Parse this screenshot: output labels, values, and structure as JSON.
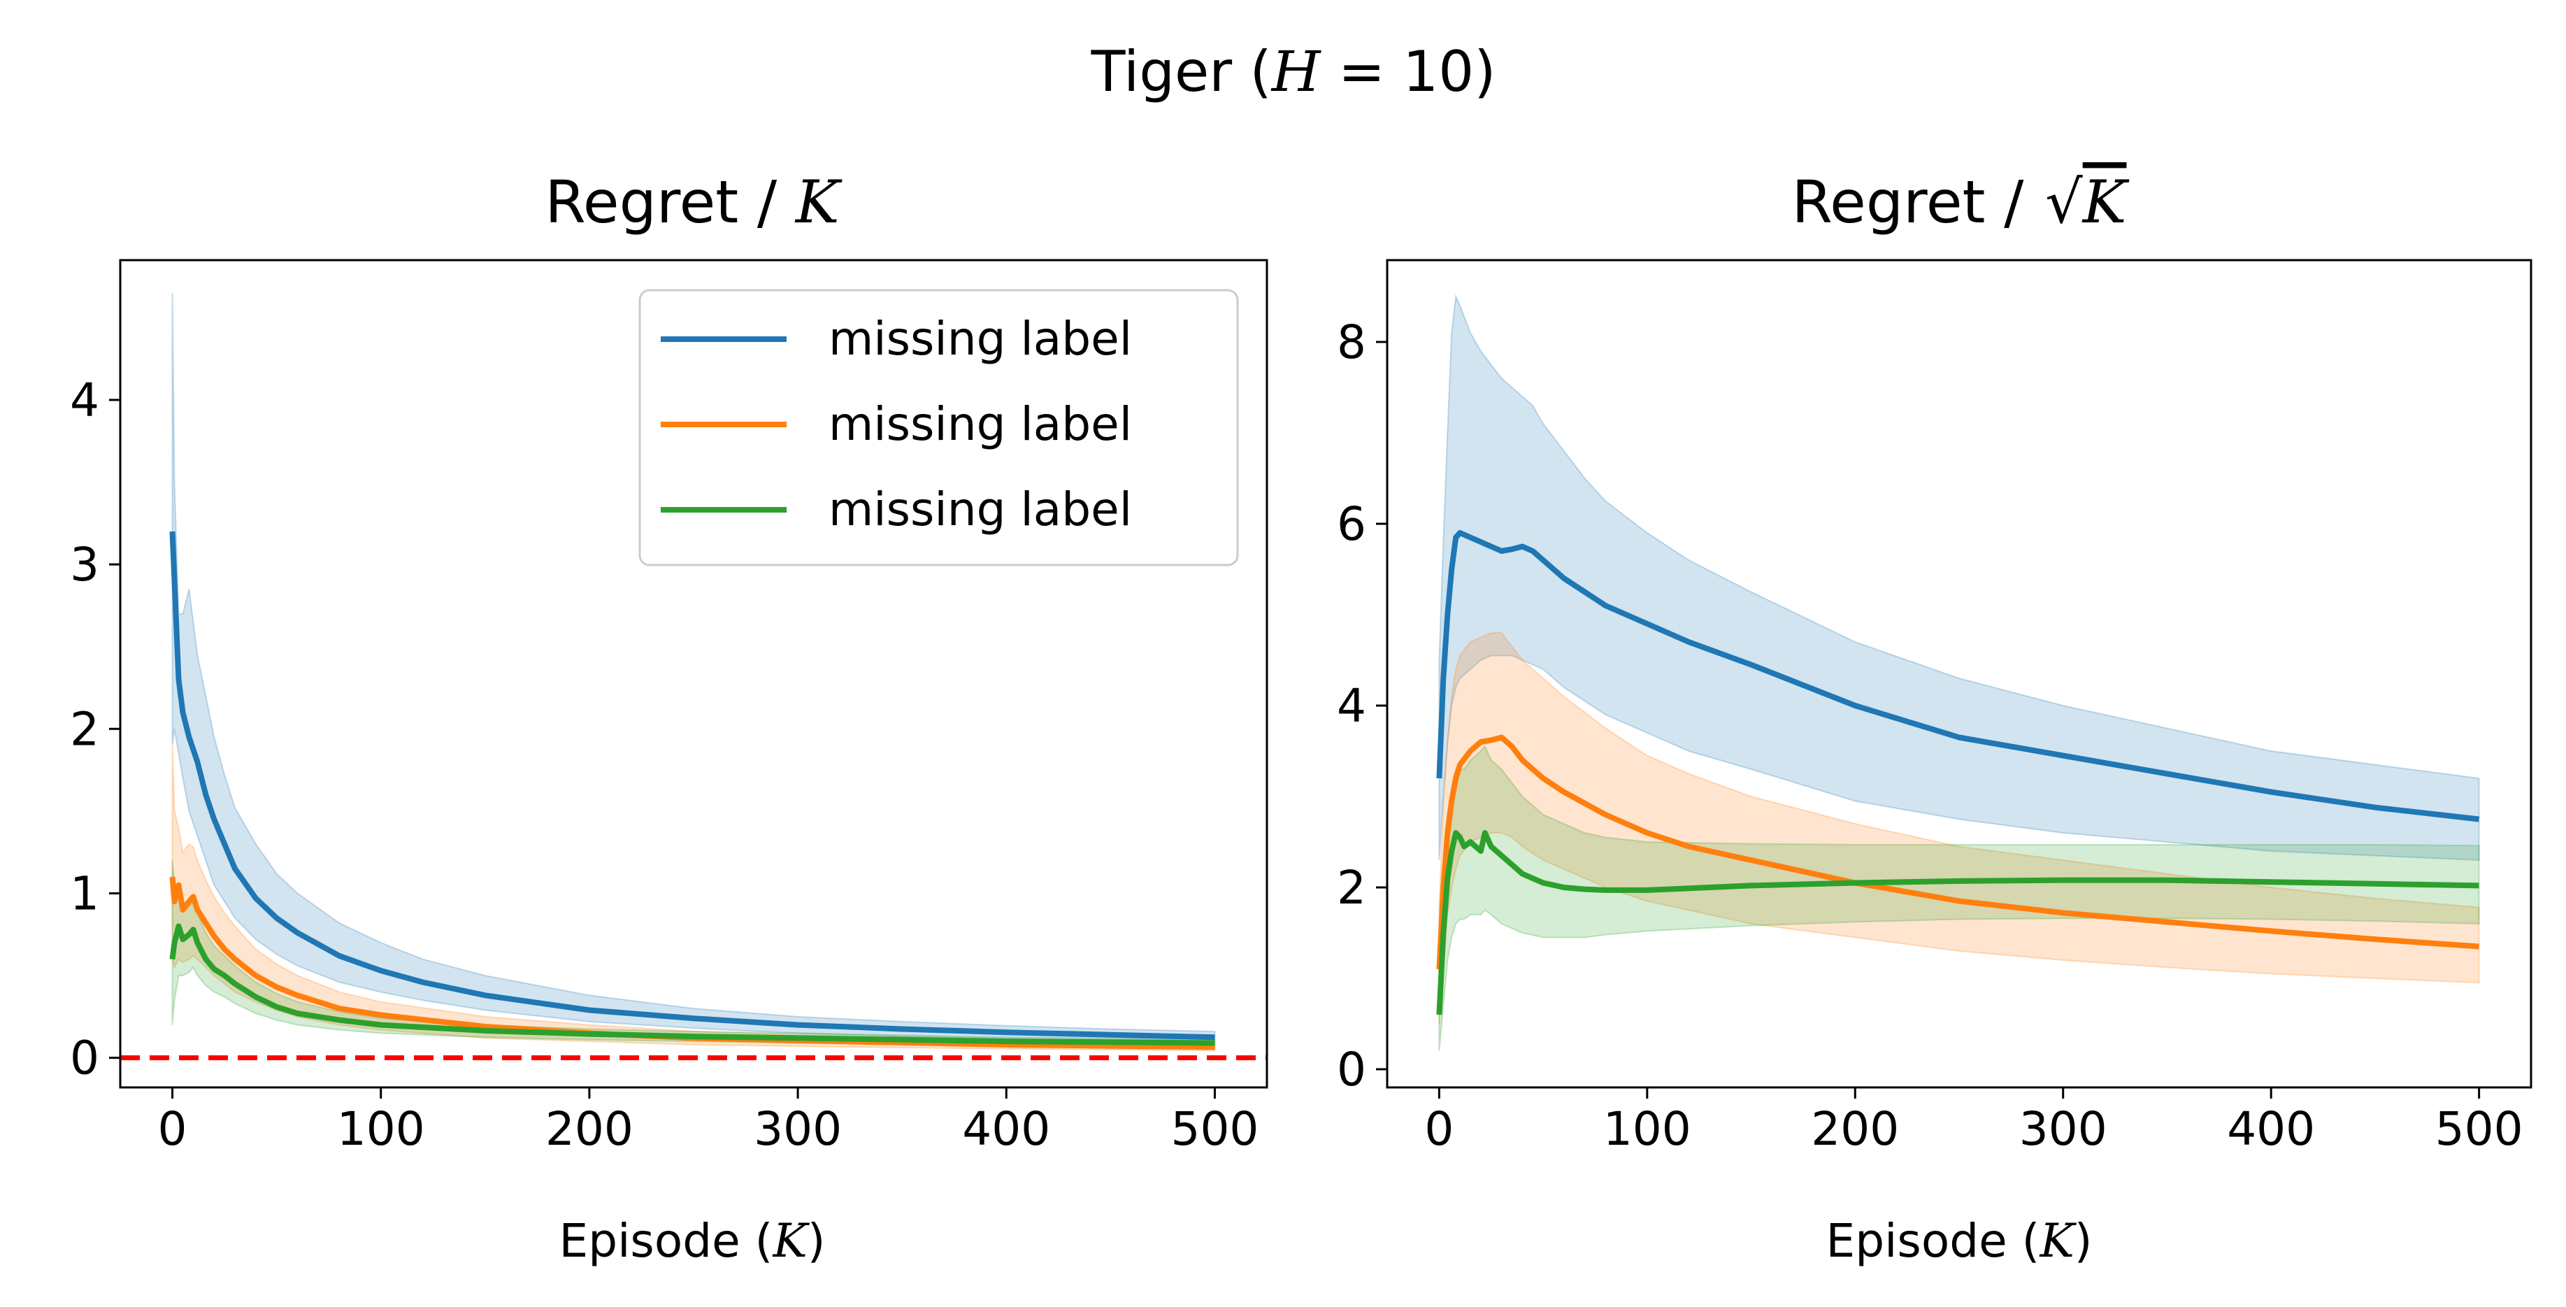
{
  "figure": {
    "suptitle": {
      "prefix": "Tiger (",
      "var": "H",
      "mid": " = 10",
      "suffix": ")"
    }
  },
  "chart_data": [
    {
      "type": "line",
      "title": {
        "prefix": "Regret / ",
        "var": "K",
        "sqrt": false
      },
      "xlabel": {
        "prefix": "Episode (",
        "var": "K",
        "suffix": ")"
      },
      "ylabel": "",
      "xlim": [
        -25,
        525
      ],
      "ylim": [
        -0.18,
        4.85
      ],
      "xticks": [
        0,
        100,
        200,
        300,
        400,
        500
      ],
      "yticks": [
        0,
        1,
        2,
        3,
        4
      ],
      "grid": false,
      "legend": {
        "position": "top-right",
        "entries": [
          "missing label",
          "missing label",
          "missing label"
        ]
      },
      "reference_line": {
        "y": 0,
        "style": "dashed",
        "color": "#ff0000"
      },
      "series": [
        {
          "name": "missing label",
          "color": "#1f77b4",
          "x": [
            0,
            1,
            3,
            5,
            8,
            12,
            16,
            20,
            25,
            30,
            40,
            50,
            60,
            80,
            100,
            120,
            150,
            200,
            250,
            300,
            350,
            400,
            450,
            500
          ],
          "y": [
            3.2,
            2.9,
            2.3,
            2.1,
            1.95,
            1.8,
            1.6,
            1.45,
            1.3,
            1.15,
            0.97,
            0.85,
            0.76,
            0.62,
            0.53,
            0.46,
            0.38,
            0.29,
            0.24,
            0.2,
            0.175,
            0.155,
            0.14,
            0.125
          ],
          "upper": [
            4.65,
            3.5,
            2.7,
            2.7,
            2.85,
            2.45,
            2.2,
            1.95,
            1.72,
            1.52,
            1.3,
            1.12,
            1.0,
            0.82,
            0.7,
            0.6,
            0.5,
            0.38,
            0.3,
            0.25,
            0.22,
            0.195,
            0.175,
            0.16
          ],
          "lower": [
            1.9,
            2.0,
            1.85,
            1.7,
            1.5,
            1.35,
            1.2,
            1.05,
            0.95,
            0.85,
            0.72,
            0.63,
            0.56,
            0.46,
            0.4,
            0.35,
            0.29,
            0.22,
            0.18,
            0.15,
            0.13,
            0.115,
            0.105,
            0.095
          ]
        },
        {
          "name": "missing label",
          "color": "#ff7f0e",
          "x": [
            0,
            1,
            3,
            5,
            8,
            10,
            12,
            16,
            20,
            25,
            30,
            40,
            50,
            60,
            80,
            100,
            150,
            200,
            250,
            300,
            400,
            500
          ],
          "y": [
            1.1,
            0.95,
            1.05,
            0.9,
            0.95,
            0.98,
            0.9,
            0.82,
            0.74,
            0.66,
            0.6,
            0.5,
            0.43,
            0.38,
            0.3,
            0.26,
            0.19,
            0.15,
            0.12,
            0.105,
            0.08,
            0.065
          ],
          "upper": [
            1.9,
            1.5,
            1.4,
            1.25,
            1.3,
            1.28,
            1.2,
            1.08,
            0.98,
            0.88,
            0.8,
            0.66,
            0.57,
            0.5,
            0.4,
            0.34,
            0.25,
            0.2,
            0.16,
            0.14,
            0.11,
            0.09
          ],
          "lower": [
            0.6,
            0.55,
            0.6,
            0.58,
            0.6,
            0.62,
            0.6,
            0.55,
            0.5,
            0.45,
            0.4,
            0.34,
            0.29,
            0.25,
            0.2,
            0.17,
            0.12,
            0.1,
            0.08,
            0.07,
            0.055,
            0.045
          ]
        },
        {
          "name": "missing label",
          "color": "#2ca02c",
          "x": [
            0,
            1,
            3,
            5,
            8,
            10,
            12,
            16,
            20,
            25,
            30,
            40,
            50,
            60,
            80,
            100,
            150,
            200,
            250,
            300,
            400,
            500
          ],
          "y": [
            0.6,
            0.7,
            0.8,
            0.72,
            0.75,
            0.78,
            0.7,
            0.6,
            0.54,
            0.5,
            0.45,
            0.37,
            0.31,
            0.27,
            0.23,
            0.2,
            0.165,
            0.145,
            0.13,
            0.12,
            0.1,
            0.09
          ],
          "upper": [
            1.2,
            1.05,
            1.0,
            0.95,
            0.92,
            0.95,
            0.88,
            0.76,
            0.68,
            0.62,
            0.56,
            0.46,
            0.39,
            0.34,
            0.28,
            0.24,
            0.2,
            0.175,
            0.16,
            0.15,
            0.125,
            0.11
          ],
          "lower": [
            0.2,
            0.35,
            0.5,
            0.5,
            0.52,
            0.55,
            0.5,
            0.44,
            0.4,
            0.37,
            0.33,
            0.27,
            0.23,
            0.2,
            0.17,
            0.15,
            0.125,
            0.11,
            0.1,
            0.09,
            0.075,
            0.07
          ]
        }
      ]
    },
    {
      "type": "line",
      "title": {
        "prefix": "Regret / ",
        "var": "K",
        "sqrt": true
      },
      "xlabel": {
        "prefix": "Episode (",
        "var": "K",
        "suffix": ")"
      },
      "ylabel": "",
      "xlim": [
        -25,
        525
      ],
      "ylim": [
        -0.2,
        8.9
      ],
      "xticks": [
        0,
        100,
        200,
        300,
        400,
        500
      ],
      "yticks": [
        0,
        2,
        4,
        6,
        8
      ],
      "grid": false,
      "series": [
        {
          "name": "missing label",
          "color": "#1f77b4",
          "x": [
            0,
            2,
            4,
            6,
            8,
            10,
            15,
            20,
            25,
            30,
            35,
            40,
            45,
            50,
            60,
            70,
            80,
            100,
            120,
            150,
            200,
            250,
            300,
            350,
            400,
            450,
            500
          ],
          "y": [
            3.2,
            4.3,
            5.0,
            5.5,
            5.85,
            5.9,
            5.85,
            5.8,
            5.75,
            5.7,
            5.72,
            5.75,
            5.7,
            5.6,
            5.4,
            5.25,
            5.1,
            4.9,
            4.7,
            4.45,
            4.0,
            3.65,
            3.45,
            3.25,
            3.05,
            2.88,
            2.75
          ],
          "upper": [
            4.5,
            5.8,
            7.0,
            8.1,
            8.5,
            8.4,
            8.1,
            7.9,
            7.75,
            7.6,
            7.5,
            7.4,
            7.3,
            7.1,
            6.8,
            6.5,
            6.25,
            5.9,
            5.6,
            5.25,
            4.7,
            4.3,
            4.0,
            3.75,
            3.5,
            3.35,
            3.2
          ],
          "lower": [
            2.3,
            3.0,
            3.6,
            4.0,
            4.2,
            4.3,
            4.4,
            4.5,
            4.55,
            4.55,
            4.55,
            4.5,
            4.45,
            4.4,
            4.2,
            4.05,
            3.9,
            3.7,
            3.5,
            3.3,
            2.95,
            2.75,
            2.6,
            2.5,
            2.4,
            2.35,
            2.3
          ]
        },
        {
          "name": "missing label",
          "color": "#ff7f0e",
          "x": [
            0,
            2,
            4,
            6,
            8,
            10,
            15,
            20,
            25,
            30,
            35,
            40,
            50,
            60,
            80,
            100,
            120,
            150,
            200,
            250,
            300,
            350,
            400,
            450,
            500
          ],
          "y": [
            1.1,
            2.0,
            2.6,
            2.95,
            3.2,
            3.35,
            3.5,
            3.6,
            3.62,
            3.65,
            3.55,
            3.4,
            3.2,
            3.05,
            2.8,
            2.6,
            2.45,
            2.3,
            2.05,
            1.85,
            1.72,
            1.62,
            1.52,
            1.43,
            1.35
          ],
          "upper": [
            1.8,
            2.9,
            3.6,
            4.1,
            4.4,
            4.55,
            4.7,
            4.75,
            4.8,
            4.8,
            4.65,
            4.5,
            4.3,
            4.1,
            3.75,
            3.45,
            3.25,
            3.0,
            2.7,
            2.45,
            2.3,
            2.15,
            2.0,
            1.88,
            1.78
          ],
          "lower": [
            0.5,
            1.1,
            1.7,
            2.0,
            2.2,
            2.35,
            2.5,
            2.55,
            2.6,
            2.6,
            2.55,
            2.45,
            2.3,
            2.2,
            2.0,
            1.85,
            1.75,
            1.6,
            1.45,
            1.3,
            1.2,
            1.12,
            1.05,
            1.0,
            0.95
          ]
        },
        {
          "name": "missing label",
          "color": "#2ca02c",
          "x": [
            0,
            2,
            4,
            6,
            8,
            10,
            12,
            15,
            20,
            22,
            25,
            30,
            35,
            40,
            50,
            60,
            70,
            80,
            100,
            150,
            200,
            250,
            300,
            350,
            400,
            450,
            500
          ],
          "y": [
            0.6,
            1.5,
            2.1,
            2.4,
            2.6,
            2.55,
            2.45,
            2.5,
            2.4,
            2.6,
            2.45,
            2.35,
            2.25,
            2.15,
            2.05,
            2.0,
            1.98,
            1.97,
            1.97,
            2.02,
            2.05,
            2.07,
            2.08,
            2.08,
            2.06,
            2.04,
            2.02
          ],
          "upper": [
            1.3,
            2.2,
            2.8,
            3.1,
            3.3,
            3.3,
            3.3,
            3.4,
            3.5,
            3.55,
            3.4,
            3.3,
            3.15,
            3.0,
            2.8,
            2.7,
            2.6,
            2.55,
            2.5,
            2.48,
            2.47,
            2.47,
            2.47,
            2.47,
            2.47,
            2.47,
            2.46
          ],
          "lower": [
            0.2,
            0.7,
            1.2,
            1.45,
            1.6,
            1.65,
            1.65,
            1.7,
            1.7,
            1.75,
            1.7,
            1.6,
            1.55,
            1.5,
            1.45,
            1.45,
            1.45,
            1.48,
            1.52,
            1.58,
            1.62,
            1.65,
            1.66,
            1.66,
            1.65,
            1.63,
            1.6
          ]
        }
      ]
    }
  ]
}
